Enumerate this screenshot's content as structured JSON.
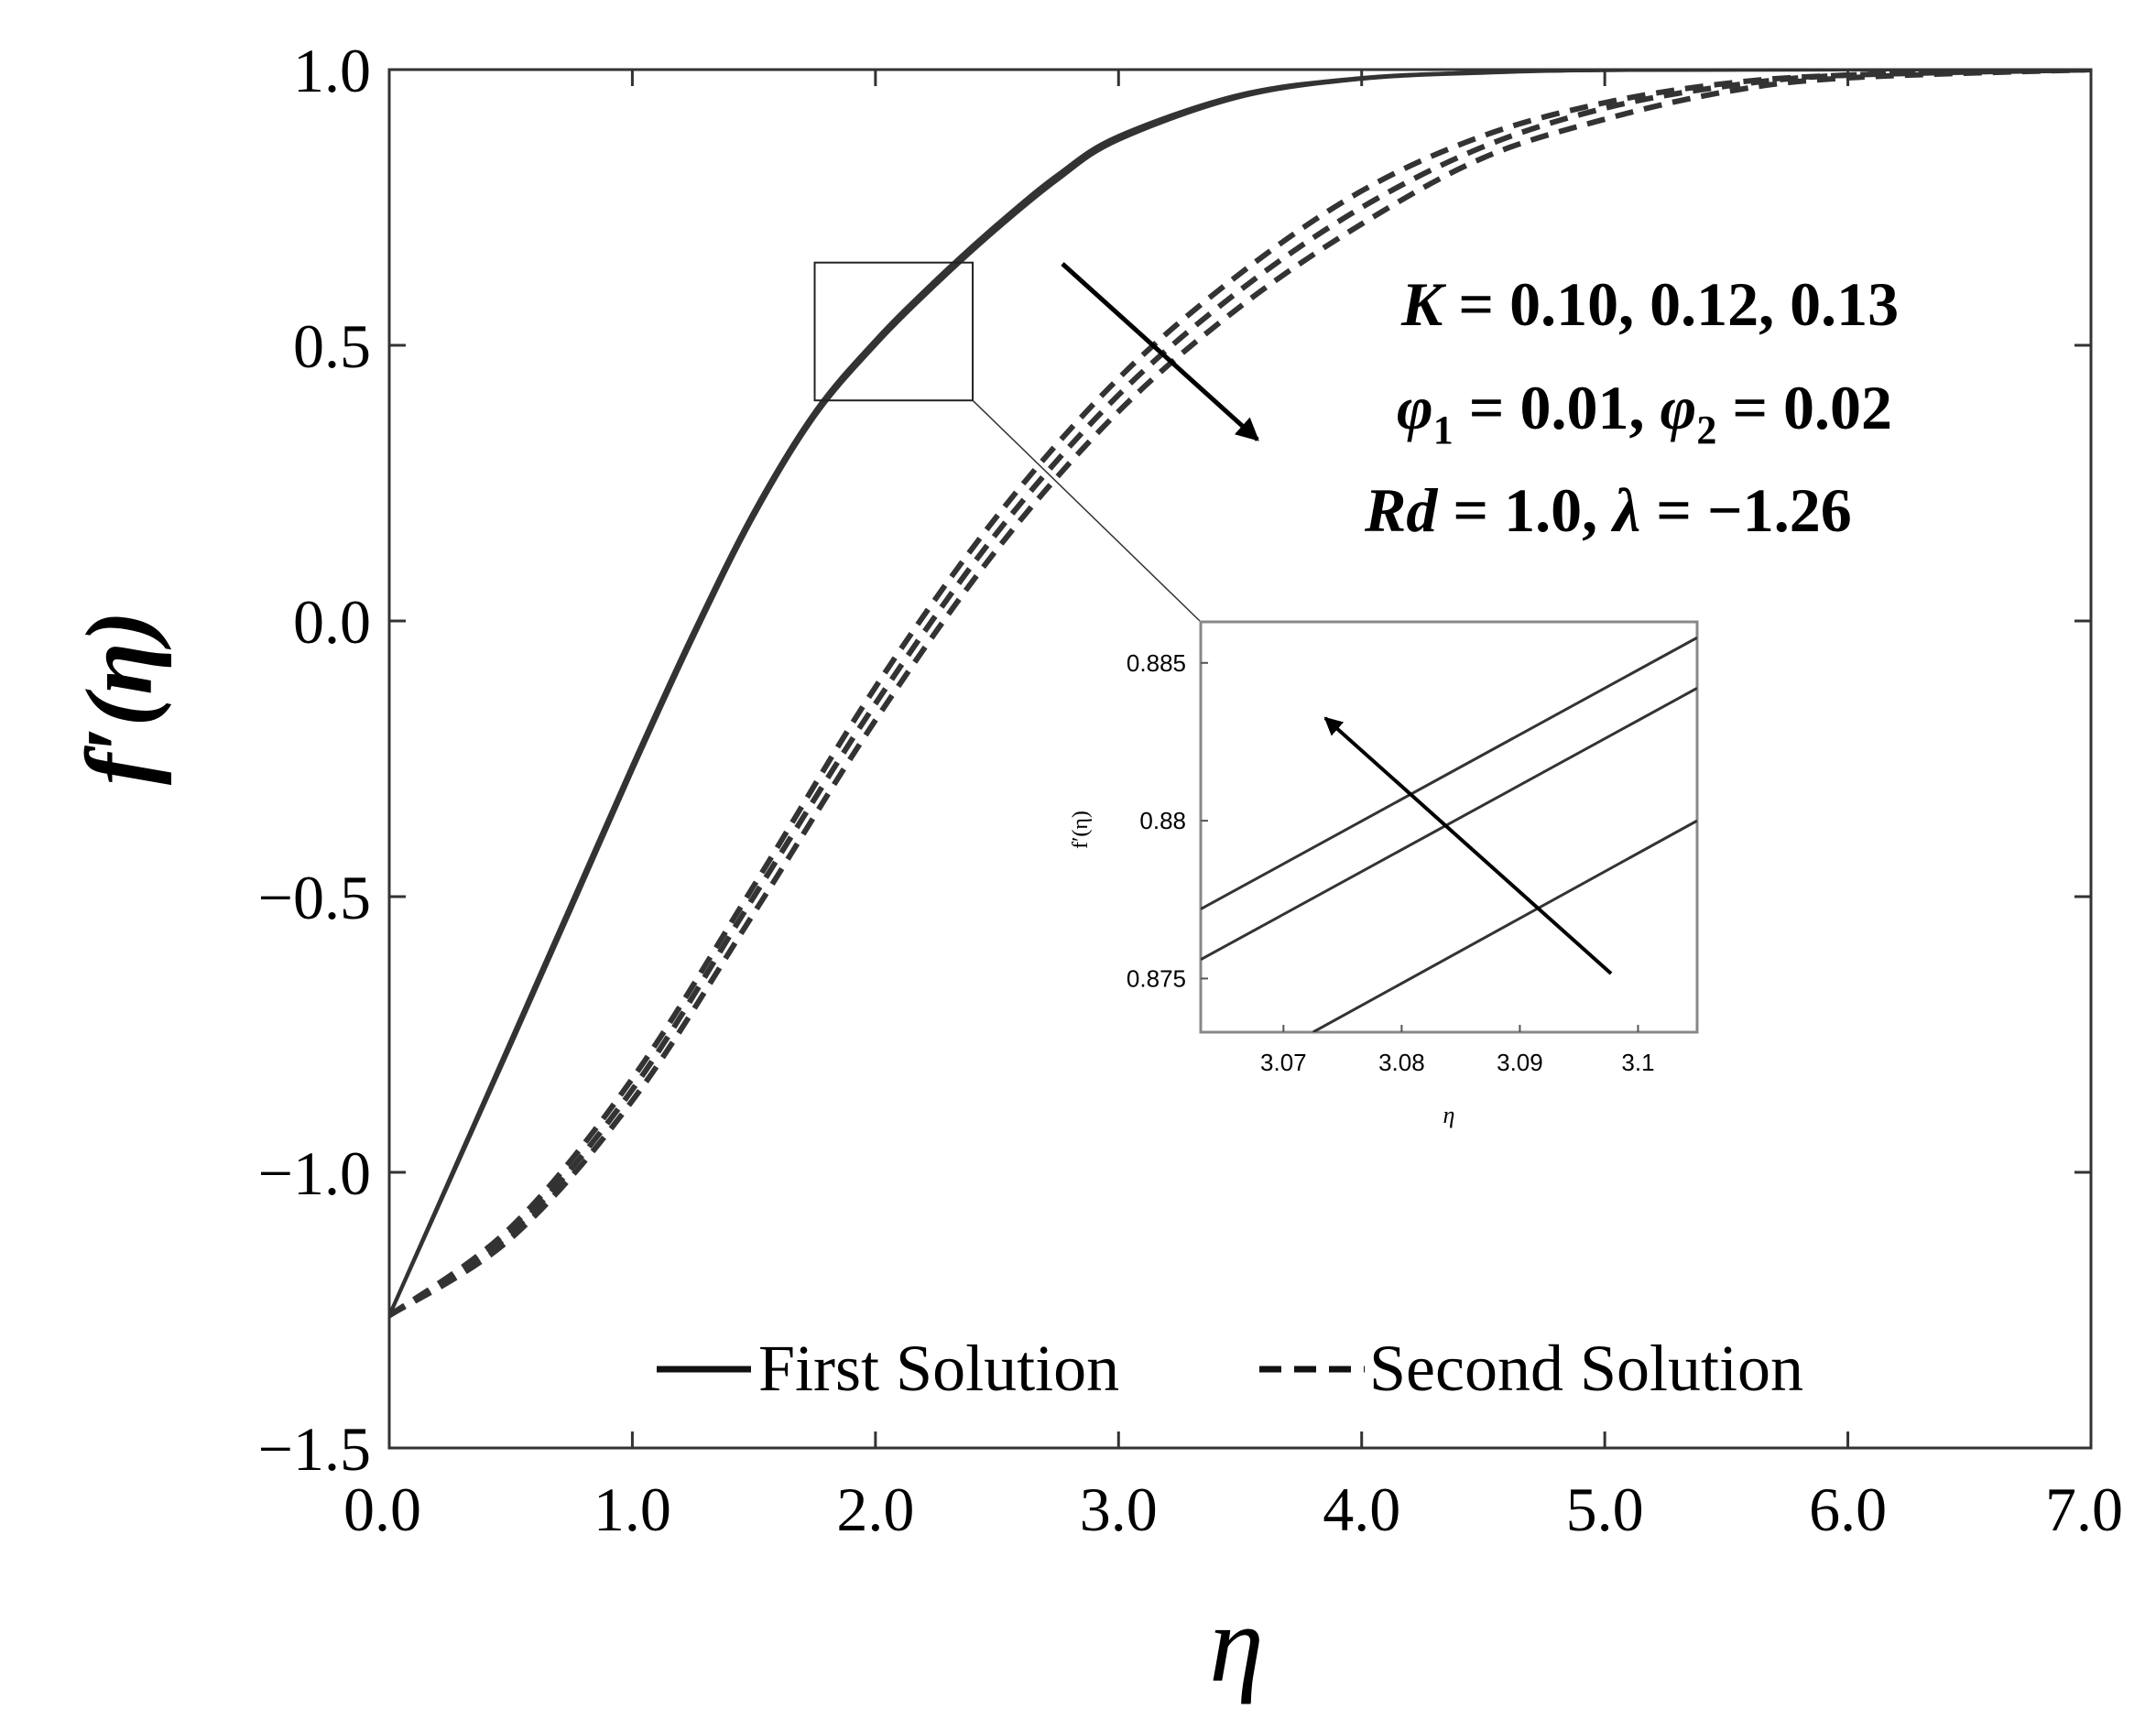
{
  "chart_data": {
    "type": "line",
    "xlabel": "η",
    "ylabel": "f′(η)",
    "xlim": [
      0,
      7
    ],
    "ylim": [
      -1.5,
      1.0
    ],
    "xticks": [
      "0.0",
      "1.0",
      "2.0",
      "3.0",
      "4.0",
      "5.0",
      "6.0",
      "7.0"
    ],
    "xtick_values": [
      0,
      1,
      2,
      3,
      4,
      5,
      6,
      7
    ],
    "yticks": [
      "1.0",
      "0.5",
      "0.0",
      "−0.5",
      "−1.0",
      "−1.5"
    ],
    "ytick_values": [
      1.0,
      0.5,
      0.0,
      -0.5,
      -1.0,
      -1.5
    ],
    "grid": false,
    "legend_position": "bottom",
    "legend": [
      {
        "label": "First Solution",
        "style": "solid"
      },
      {
        "label": "Second Solution",
        "style": "dashed"
      }
    ],
    "series": [
      {
        "style": "solid",
        "x": [
          0,
          0.25,
          0.5,
          0.75,
          1.0,
          1.25,
          1.5,
          1.75,
          2.0,
          2.25,
          2.5,
          2.75,
          3.0,
          3.5,
          4.0,
          4.5,
          5.0,
          6.0,
          7.0
        ],
        "y": [
          -1.26,
          -1.01,
          -0.76,
          -0.51,
          -0.26,
          -0.02,
          0.2,
          0.38,
          0.51,
          0.62,
          0.72,
          0.81,
          0.88,
          0.955,
          0.985,
          0.995,
          0.999,
          1.0,
          1.0
        ]
      },
      {
        "style": "solid",
        "x": [
          0,
          0.25,
          0.5,
          0.75,
          1.0,
          1.25,
          1.5,
          1.75,
          2.0,
          2.25,
          2.5,
          2.75,
          3.0,
          3.5,
          4.0,
          4.5,
          5.0,
          6.0,
          7.0
        ],
        "y": [
          -1.26,
          -1.012,
          -0.764,
          -0.516,
          -0.266,
          -0.026,
          0.195,
          0.376,
          0.506,
          0.616,
          0.716,
          0.806,
          0.877,
          0.953,
          0.984,
          0.995,
          0.999,
          1.0,
          1.0
        ]
      },
      {
        "style": "solid",
        "x": [
          0,
          0.25,
          0.5,
          0.75,
          1.0,
          1.25,
          1.5,
          1.75,
          2.0,
          2.25,
          2.5,
          2.75,
          3.0,
          3.5,
          4.0,
          4.5,
          5.0,
          6.0,
          7.0
        ],
        "y": [
          -1.26,
          -1.015,
          -0.77,
          -0.522,
          -0.272,
          -0.032,
          0.189,
          0.37,
          0.5,
          0.61,
          0.71,
          0.8,
          0.872,
          0.95,
          0.983,
          0.994,
          0.999,
          1.0,
          1.0
        ]
      },
      {
        "style": "dashed",
        "x": [
          0,
          0.5,
          1.0,
          1.5,
          2.0,
          2.5,
          3.0,
          3.5,
          4.0,
          4.5,
          5.0,
          5.5,
          6.0,
          7.0
        ],
        "y": [
          -1.26,
          -1.1,
          -0.83,
          -0.48,
          -0.12,
          0.19,
          0.44,
          0.63,
          0.78,
          0.88,
          0.94,
          0.975,
          0.99,
          1.0
        ]
      },
      {
        "style": "dashed",
        "x": [
          0,
          0.5,
          1.0,
          1.5,
          2.0,
          2.5,
          3.0,
          3.5,
          4.0,
          4.5,
          5.0,
          5.5,
          6.0,
          7.0
        ],
        "y": [
          -1.26,
          -1.11,
          -0.85,
          -0.5,
          -0.15,
          0.16,
          0.41,
          0.6,
          0.75,
          0.86,
          0.93,
          0.97,
          0.99,
          1.0
        ]
      },
      {
        "style": "dashed",
        "x": [
          0,
          0.5,
          1.0,
          1.5,
          2.0,
          2.5,
          3.0,
          3.5,
          4.0,
          4.5,
          5.0,
          5.5,
          6.0,
          7.0
        ],
        "y": [
          -1.26,
          -1.12,
          -0.87,
          -0.53,
          -0.18,
          0.13,
          0.38,
          0.57,
          0.72,
          0.84,
          0.91,
          0.96,
          0.985,
          1.0
        ]
      }
    ],
    "annotation": {
      "lines": [
        {
          "var": "K",
          "text": " = 0.10,  0.12,  0.13"
        },
        {
          "var": "φ",
          "sub": "1",
          "text": " = 0.01,  ",
          "var2": "φ",
          "sub2": "2",
          "text2": " = 0.02"
        },
        {
          "var": "Rd",
          "text": " = 1.0,  ",
          "var2": "λ",
          "text2": " = −1.26"
        }
      ]
    },
    "zoom_box": {
      "xlim": [
        1.75,
        2.4
      ],
      "ylim": [
        0.4,
        0.65
      ]
    },
    "inset": {
      "type": "line",
      "xlabel": "η",
      "ylabel": "f′(η)",
      "xlim": [
        3.063,
        3.105
      ],
      "ylim": [
        0.8733,
        0.8863
      ],
      "xticks": [
        "3.07",
        "3.08",
        "3.09",
        "3.1"
      ],
      "xtick_values": [
        3.07,
        3.08,
        3.09,
        3.1
      ],
      "yticks": [
        "0.885",
        "0.88",
        "0.875"
      ],
      "ytick_values": [
        0.885,
        0.88,
        0.875
      ],
      "series": [
        {
          "x": [
            3.063,
            3.105
          ],
          "y": [
            0.8772,
            0.8858
          ]
        },
        {
          "x": [
            3.063,
            3.105
          ],
          "y": [
            0.8756,
            0.8842
          ]
        },
        {
          "x": [
            3.0725,
            3.105
          ],
          "y": [
            0.8733,
            0.88
          ]
        }
      ]
    }
  }
}
